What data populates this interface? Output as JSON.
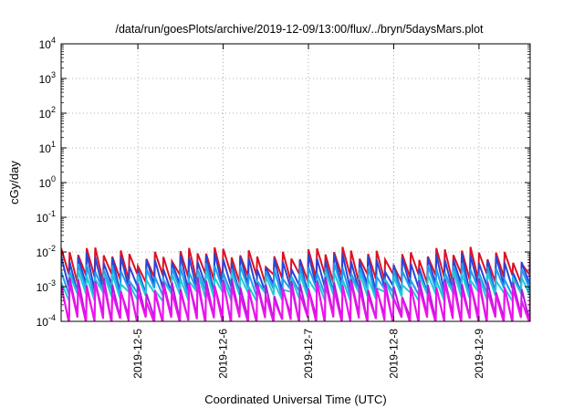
{
  "chart_data": {
    "type": "line",
    "title": "/data/run/goesPlots/archive/2019-12-09/13:00/flux/../bryn/5daysMars.plot",
    "xlabel": "Coordinated Universal Time (UTC)",
    "ylabel": "cGy/day",
    "x_ticks": [
      "2019-12-5",
      "2019-12-6",
      "2019-12-7",
      "2019-12-8",
      "2019-12-9"
    ],
    "x_range_days": [
      4.1,
      9.6
    ],
    "y_scale": "log",
    "ylim": [
      0.0001,
      10000
    ],
    "y_ticks": [
      {
        "base": "10",
        "exp": "-4"
      },
      {
        "base": "10",
        "exp": "-3"
      },
      {
        "base": "10",
        "exp": "-2"
      },
      {
        "base": "10",
        "exp": "-1"
      },
      {
        "base": "10",
        "exp": "0"
      },
      {
        "base": "10",
        "exp": "1"
      },
      {
        "base": "10",
        "exp": "2"
      },
      {
        "base": "10",
        "exp": "3"
      },
      {
        "base": "10",
        "exp": "4"
      }
    ],
    "grid": true,
    "legend": "none",
    "sawtooth_period_days": 0.1,
    "series": [
      {
        "color": "#dd1122",
        "peak": 0.009,
        "trough": 0.0018
      },
      {
        "color": "#2a44d8",
        "peak": 0.006,
        "trough": 0.0009
      },
      {
        "color": "#2299ee",
        "peak": 0.003,
        "trough": 0.0007
      },
      {
        "color": "#22c8d8",
        "peak": 0.0018,
        "trough": 0.00055
      },
      {
        "color": "#b21ad8",
        "peak": 0.0012,
        "trough": 0.00012
      },
      {
        "color": "#ee11ee",
        "peak": 0.0009,
        "trough": 0.0001
      }
    ]
  }
}
